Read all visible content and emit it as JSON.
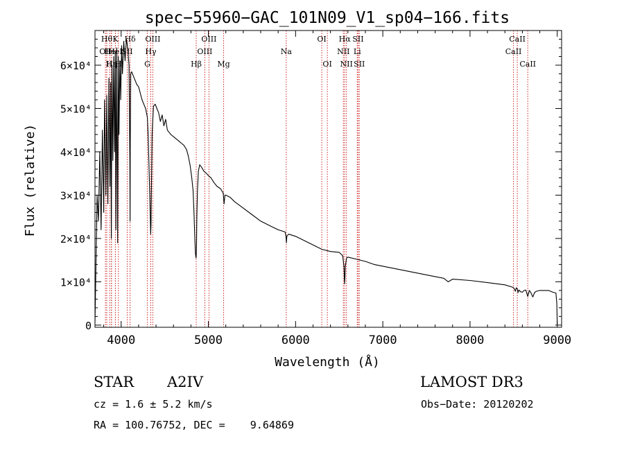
{
  "chart_data": {
    "type": "line",
    "title": "spec−55960−GAC_101N09_V1_sp04−166.fits",
    "xlabel": "Wavelength (Å)",
    "ylabel": "Flux (relative)",
    "xlim": [
      3700,
      9050
    ],
    "ylim": [
      -500,
      68000
    ],
    "xticks": [
      4000,
      5000,
      6000,
      7000,
      8000,
      9000
    ],
    "xtick_labels": [
      "4000",
      "5000",
      "6000",
      "7000",
      "8000",
      "9000"
    ],
    "yticks": [
      0,
      10000,
      20000,
      30000,
      40000,
      50000,
      60000
    ],
    "ytick_labels": [
      "0",
      "1×10⁴",
      "2×10⁴",
      "3×10⁴",
      "4×10⁴",
      "5×10⁴",
      "6×10⁴"
    ],
    "series": [
      {
        "name": "spectrum",
        "x": [
          3700,
          3712,
          3725,
          3740,
          3755,
          3770,
          3785,
          3800,
          3810,
          3825,
          3835,
          3848,
          3860,
          3872,
          3880,
          3888,
          3895,
          3905,
          3915,
          3925,
          3933,
          3940,
          3950,
          3960,
          3968,
          3975,
          3985,
          3995,
          4005,
          4015,
          4030,
          4045,
          4060,
          4075,
          4090,
          4100,
          4102,
          4105,
          4110,
          4120,
          4140,
          4160,
          4180,
          4200,
          4220,
          4240,
          4260,
          4280,
          4300,
          4310,
          4320,
          4330,
          4338,
          4342,
          4346,
          4355,
          4370,
          4390,
          4410,
          4430,
          4450,
          4470,
          4490,
          4510,
          4530,
          4550,
          4570,
          4600,
          4630,
          4660,
          4690,
          4720,
          4750,
          4770,
          4790,
          4810,
          4825,
          4835,
          4845,
          4852,
          4858,
          4861,
          4864,
          4868,
          4875,
          4885,
          4900,
          4920,
          4950,
          4980,
          5000,
          5030,
          5060,
          5100,
          5140,
          5170,
          5180,
          5190,
          5200,
          5250,
          5300,
          5400,
          5500,
          5600,
          5700,
          5800,
          5880,
          5890,
          5895,
          5900,
          5920,
          6000,
          6100,
          6200,
          6300,
          6400,
          6500,
          6540,
          6555,
          6562,
          6565,
          6570,
          6585,
          6600,
          6700,
          6800,
          6900,
          7000,
          7200,
          7400,
          7600,
          7700,
          7750,
          7800,
          8000,
          8200,
          8400,
          8480,
          8500,
          8510,
          8520,
          8530,
          8542,
          8550,
          8560,
          8580,
          8600,
          8620,
          8640,
          8662,
          8680,
          8700,
          8720,
          8740,
          8760,
          8800,
          8850,
          8900,
          8950,
          8985,
          8995,
          9000
        ],
        "y": [
          500,
          15000,
          30000,
          24000,
          40000,
          22000,
          45000,
          26000,
          52000,
          30000,
          53000,
          28000,
          57000,
          32000,
          56000,
          20000,
          60000,
          38000,
          62000,
          40000,
          63000,
          22000,
          64000,
          19000,
          62000,
          44000,
          61000,
          52000,
          64500,
          58000,
          65500,
          61000,
          66000,
          64000,
          60000,
          38000,
          24000,
          42000,
          58000,
          58500,
          57500,
          56500,
          55500,
          55000,
          53500,
          52000,
          51000,
          50000,
          48000,
          44000,
          36000,
          28000,
          21000,
          23000,
          30000,
          44000,
          50500,
          51000,
          50000,
          49000,
          47000,
          48500,
          46000,
          47500,
          45000,
          44500,
          44000,
          43500,
          43000,
          42500,
          42000,
          41500,
          40500,
          39000,
          37000,
          34000,
          31000,
          26000,
          20000,
          16500,
          15500,
          16000,
          18000,
          25000,
          31000,
          35500,
          37000,
          36500,
          35500,
          35000,
          34500,
          34000,
          33000,
          32000,
          31500,
          30500,
          28000,
          30000,
          30000,
          29500,
          28500,
          27000,
          25500,
          24000,
          23000,
          22000,
          21500,
          20500,
          19000,
          20500,
          21000,
          20500,
          19500,
          18500,
          17500,
          17000,
          16800,
          16000,
          13500,
          9500,
          10500,
          13500,
          15500,
          15700,
          15200,
          14700,
          14000,
          13600,
          12800,
          12000,
          11200,
          10800,
          10000,
          10600,
          10300,
          9800,
          9300,
          8800,
          8600,
          8300,
          7800,
          8600,
          8400,
          7500,
          8100,
          7700,
          7600,
          8000,
          8100,
          6600,
          8000,
          7400,
          6500,
          7500,
          7800,
          8000,
          8000,
          8000,
          7600,
          7400,
          5000,
          200
        ]
      }
    ],
    "line_markers": [
      {
        "w": 3835,
        "name": "Hθ",
        "row": 1
      },
      {
        "w": 3820,
        "name": "OII",
        "row": 2
      },
      {
        "w": 3869,
        "name": "He",
        "row": 2
      },
      {
        "w": 3889,
        "name": "Hη",
        "row": 3
      },
      {
        "w": 3889,
        "name": "Hε",
        "row": 3
      },
      {
        "w": 3934,
        "name": "K",
        "row": 1
      },
      {
        "w": 3934,
        "name": "HeI",
        "row": 2
      },
      {
        "w": 3969,
        "name": "H",
        "row": 3
      },
      {
        "w": 4070,
        "name": "SII",
        "row": 2
      },
      {
        "w": 4102,
        "name": "Hδ",
        "row": 1
      },
      {
        "w": 4300,
        "name": "G",
        "row": 3
      },
      {
        "w": 4340,
        "name": "Hγ",
        "row": 2
      },
      {
        "w": 4363,
        "name": "OIII",
        "row": 1
      },
      {
        "w": 4861,
        "name": "Hβ",
        "row": 3
      },
      {
        "w": 4959,
        "name": "OIII",
        "row": 2
      },
      {
        "w": 5007,
        "name": "OIII",
        "row": 1
      },
      {
        "w": 5175,
        "name": "Mg",
        "row": 3
      },
      {
        "w": 5893,
        "name": "Na",
        "row": 2
      },
      {
        "w": 6300,
        "name": "OI",
        "row": 1
      },
      {
        "w": 6364,
        "name": "OI",
        "row": 3
      },
      {
        "w": 6548,
        "name": "NII",
        "row": 2
      },
      {
        "w": 6563,
        "name": "Hα",
        "row": 1
      },
      {
        "w": 6583,
        "name": "NII",
        "row": 3
      },
      {
        "w": 6707,
        "name": "Li",
        "row": 2
      },
      {
        "w": 6717,
        "name": "SII",
        "row": 1
      },
      {
        "w": 6731,
        "name": "SII",
        "row": 3
      },
      {
        "w": 8498,
        "name": "CaII",
        "row": 2
      },
      {
        "w": 8542,
        "name": "CaII",
        "row": 1
      },
      {
        "w": 8662,
        "name": "CaII",
        "row": 3
      }
    ]
  },
  "info": {
    "class": "STAR",
    "subclass": "A2IV",
    "survey": "LAMOST DR3",
    "cz": "cz = 1.6 ± 5.2 km/s",
    "obs_date": "Obs−Date: 20120202",
    "radec": "RA = 100.76752, DEC =    9.64869"
  }
}
